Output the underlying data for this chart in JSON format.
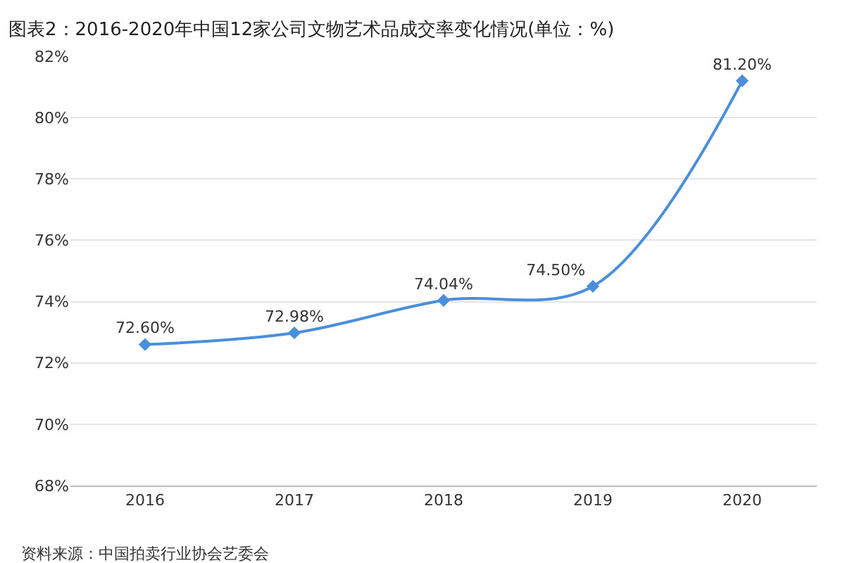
{
  "chart_data": {
    "type": "line",
    "title": "图表2：2016-2020年中国12家公司文物艺术品成交率变化情况(单位：%)",
    "categories": [
      "2016",
      "2017",
      "2018",
      "2019",
      "2020"
    ],
    "series": [
      {
        "color": "#4a8fdb",
        "values": [
          72.6,
          72.98,
          74.04,
          74.5,
          81.2
        ],
        "value_labels": [
          "72.60%",
          "72.98%",
          "74.04%",
          "74.50%",
          "81.20%"
        ]
      }
    ],
    "ylim": [
      68,
      82
    ],
    "yticks": [
      {
        "value": 68,
        "label": "68%"
      },
      {
        "value": 70,
        "label": "70%"
      },
      {
        "value": 72,
        "label": "72%"
      },
      {
        "value": 74,
        "label": "74%"
      },
      {
        "value": 76,
        "label": "76%"
      },
      {
        "value": 78,
        "label": "78%"
      },
      {
        "value": 80,
        "label": "80%"
      },
      {
        "value": 82,
        "label": "82%"
      }
    ],
    "grid": "y",
    "marker": "diamond",
    "line_style": "solid",
    "legend": false,
    "annotations": [
      "资料来源：中国拍卖行业协会艺委会"
    ]
  }
}
